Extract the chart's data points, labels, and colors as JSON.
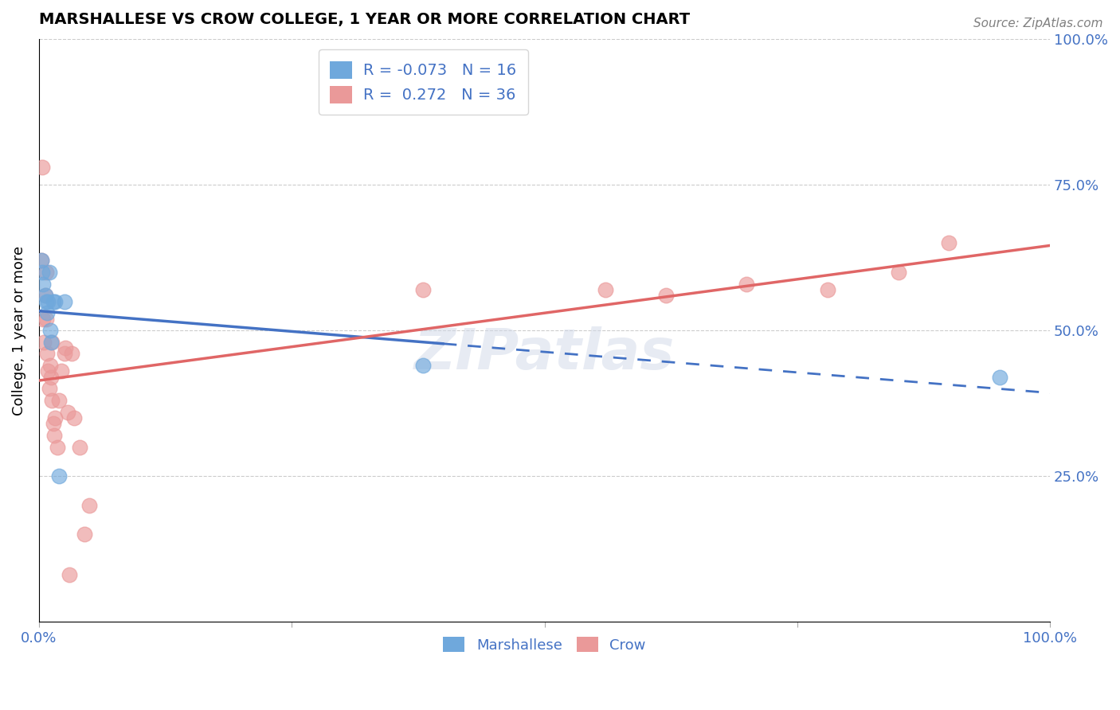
{
  "title": "MARSHALLESE VS CROW COLLEGE, 1 YEAR OR MORE CORRELATION CHART",
  "source": "Source: ZipAtlas.com",
  "ylabel": "College, 1 year or more",
  "xlim": [
    0.0,
    1.0
  ],
  "ylim": [
    0.0,
    1.0
  ],
  "marshallese_color": "#6fa8dc",
  "crow_color": "#ea9999",
  "trendline_blue_color": "#4472c4",
  "trendline_pink_color": "#e06666",
  "tick_color": "#4472c4",
  "legend_r_blue": "-0.073",
  "legend_n_blue": "16",
  "legend_r_pink": "0.272",
  "legend_n_pink": "36",
  "watermark": "ZIPatlas",
  "marshallese_x": [
    0.002,
    0.003,
    0.004,
    0.006,
    0.007,
    0.008,
    0.009,
    0.01,
    0.011,
    0.012,
    0.014,
    0.016,
    0.02,
    0.025,
    0.38,
    0.95
  ],
  "marshallese_y": [
    0.62,
    0.6,
    0.58,
    0.56,
    0.55,
    0.53,
    0.55,
    0.6,
    0.5,
    0.48,
    0.55,
    0.55,
    0.25,
    0.55,
    0.44,
    0.42
  ],
  "crow_x": [
    0.002,
    0.003,
    0.004,
    0.005,
    0.006,
    0.007,
    0.007,
    0.008,
    0.009,
    0.01,
    0.011,
    0.012,
    0.013,
    0.013,
    0.014,
    0.015,
    0.016,
    0.018,
    0.02,
    0.022,
    0.025,
    0.026,
    0.028,
    0.03,
    0.032,
    0.035,
    0.04,
    0.045,
    0.05,
    0.38,
    0.56,
    0.62,
    0.7,
    0.78,
    0.85,
    0.9
  ],
  "crow_y": [
    0.62,
    0.78,
    0.52,
    0.48,
    0.56,
    0.52,
    0.6,
    0.46,
    0.43,
    0.4,
    0.44,
    0.42,
    0.38,
    0.48,
    0.34,
    0.32,
    0.35,
    0.3,
    0.38,
    0.43,
    0.46,
    0.47,
    0.36,
    0.08,
    0.46,
    0.35,
    0.3,
    0.15,
    0.2,
    0.57,
    0.57,
    0.56,
    0.58,
    0.57,
    0.6,
    0.65
  ]
}
